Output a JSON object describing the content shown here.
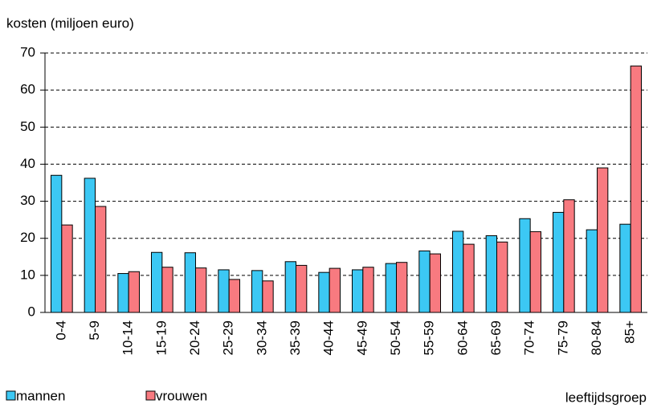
{
  "chart_data": {
    "type": "bar",
    "y_label": "kosten (miljoen euro)",
    "x_label": "leeftijdsgroep",
    "categories": [
      "0-4",
      "5-9",
      "10-14",
      "15-19",
      "20-24",
      "25-29",
      "30-34",
      "35-39",
      "40-44",
      "45-49",
      "50-54",
      "55-59",
      "60-64",
      "65-69",
      "70-74",
      "75-79",
      "80-84",
      "85+"
    ],
    "series": [
      {
        "name": "mannen",
        "color": "#3cc8f4",
        "values": [
          37,
          36.2,
          10.5,
          16.2,
          16.1,
          11.5,
          11.3,
          13.7,
          10.8,
          11.5,
          13.2,
          16.6,
          21.9,
          20.7,
          25.3,
          27,
          22.3,
          23.8
        ]
      },
      {
        "name": "vrouwen",
        "color": "#f87a80",
        "values": [
          23.6,
          28.6,
          11,
          12.2,
          12,
          8.9,
          8.5,
          12.7,
          11.9,
          12.2,
          13.5,
          15.8,
          18.4,
          19,
          21.8,
          30.4,
          39,
          66.5
        ]
      }
    ],
    "ylim": [
      0,
      70
    ],
    "yticks": [
      0,
      10,
      20,
      30,
      40,
      50,
      60,
      70
    ],
    "grid": true
  }
}
